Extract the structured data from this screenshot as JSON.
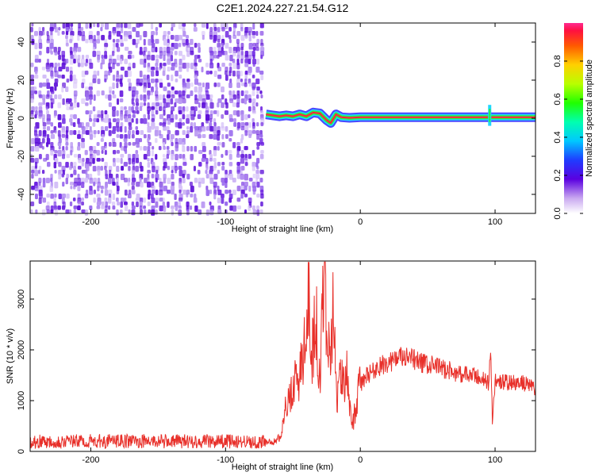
{
  "title": "C2E1.2024.227.21.54.G12",
  "chart_data": [
    {
      "type": "heatmap",
      "title": "C2E1.2024.227.21.54.G12",
      "xlabel": "Height of straight line (km)",
      "ylabel": "Frequency (Hz)",
      "xlim": [
        -245,
        130
      ],
      "ylim": [
        -50,
        50
      ],
      "x_ticks": [
        -200,
        -100,
        0,
        100
      ],
      "y_ticks": [
        -40,
        -20,
        0,
        20,
        40
      ],
      "noise_region_x": [
        -245,
        -72
      ],
      "signal": [
        {
          "x": -70,
          "y": 2.0
        },
        {
          "x": -65,
          "y": 1.5
        },
        {
          "x": -60,
          "y": 1.0
        },
        {
          "x": -55,
          "y": 1.5
        },
        {
          "x": -50,
          "y": 1.0
        },
        {
          "x": -45,
          "y": 2.0
        },
        {
          "x": -40,
          "y": 1.0
        },
        {
          "x": -35,
          "y": 3.0
        },
        {
          "x": -30,
          "y": 2.5
        },
        {
          "x": -25,
          "y": -1.0
        },
        {
          "x": -22,
          "y": -2.5
        },
        {
          "x": -18,
          "y": 2.0
        },
        {
          "x": -14,
          "y": 0.5
        },
        {
          "x": -8,
          "y": 0.2
        },
        {
          "x": 0,
          "y": 0.5
        },
        {
          "x": 5,
          "y": 0.5
        },
        {
          "x": 130,
          "y": 0.5
        }
      ],
      "spike_x": 96,
      "colorbar": {
        "label": "Normalized spectral amplitude",
        "range": [
          0,
          1
        ],
        "ticks": [
          "0.0",
          "0.2",
          "0.4",
          "0.6",
          "0.8"
        ]
      }
    },
    {
      "type": "line",
      "xlabel": "Height of straight line (km)",
      "ylabel": "SNR (10 * v/v)",
      "xlim": [
        -245,
        130
      ],
      "ylim": [
        0,
        3750
      ],
      "x_ticks": [
        -200,
        -100,
        0,
        100
      ],
      "y_ticks": [
        0,
        1000,
        2000,
        3000
      ],
      "color": "#e8302a",
      "series": [
        {
          "x": [
            -245,
            -200,
            -150,
            -100,
            -70,
            -62,
            -58,
            -55,
            -50,
            -45,
            -40,
            -38,
            -36,
            -33,
            -30,
            -27,
            -25,
            -23,
            -20,
            -17,
            -15,
            -12,
            -10,
            -8,
            -5,
            -2,
            0,
            5,
            10,
            20,
            30,
            40,
            50,
            60,
            70,
            80,
            90,
            95,
            97,
            98,
            100,
            110,
            120,
            130
          ],
          "y": [
            200,
            200,
            200,
            200,
            180,
            200,
            400,
            900,
            1300,
            1500,
            2200,
            3600,
            1800,
            2800,
            1200,
            3700,
            2600,
            1900,
            2800,
            1000,
            1600,
            1200,
            1700,
            800,
            600,
            1100,
            1300,
            1500,
            1600,
            1750,
            1850,
            1800,
            1700,
            1650,
            1550,
            1500,
            1450,
            1350,
            1900,
            500,
            1400,
            1350,
            1350,
            1250
          ]
        }
      ]
    }
  ]
}
